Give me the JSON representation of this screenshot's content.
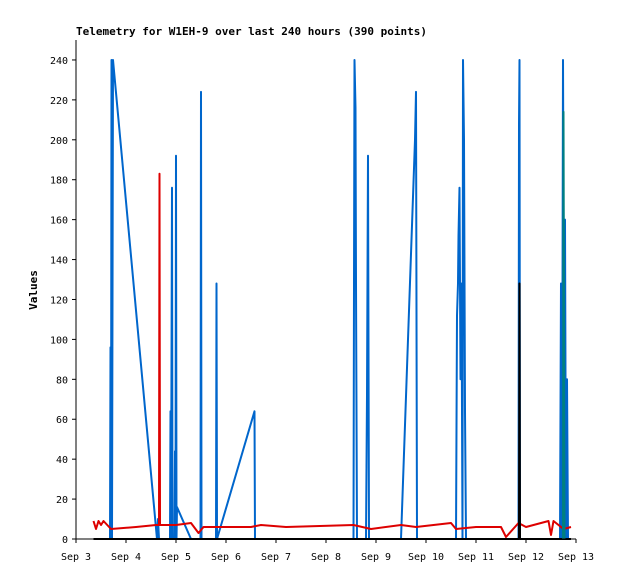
{
  "chart_data": {
    "type": "line",
    "title": "Telemetry for W1EH-9 over last 240 hours (390 points)",
    "xlabel": "",
    "ylabel": "Values",
    "x_unit": "day of September",
    "xlim": [
      3,
      13
    ],
    "ylim": [
      0,
      250
    ],
    "x_ticks": [
      3,
      4,
      5,
      6,
      7,
      8,
      9,
      10,
      11,
      12,
      13
    ],
    "x_tick_labels": [
      "Sep 3",
      "Sep 4",
      "Sep 5",
      "Sep 6",
      "Sep 7",
      "Sep 8",
      "Sep 9",
      "Sep 10",
      "Sep 11",
      "Sep 12",
      "Sep 13"
    ],
    "y_ticks": [
      0,
      20,
      40,
      60,
      80,
      100,
      120,
      140,
      160,
      180,
      200,
      220,
      240
    ],
    "grid": false,
    "legend": "none",
    "series": [
      {
        "color": "#0066cc",
        "points": [
          [
            3.55,
            0
          ],
          [
            3.68,
            0
          ],
          [
            3.69,
            96
          ],
          [
            3.7,
            0
          ],
          [
            3.71,
            240
          ],
          [
            3.72,
            0
          ],
          [
            3.74,
            240
          ],
          [
            4.62,
            0
          ],
          [
            4.64,
            10
          ],
          [
            4.66,
            0
          ],
          [
            4.88,
            0
          ],
          [
            4.89,
            64
          ],
          [
            4.9,
            0
          ],
          [
            4.92,
            176
          ],
          [
            4.93,
            0
          ],
          [
            4.97,
            0
          ],
          [
            4.98,
            44
          ],
          [
            4.99,
            0
          ],
          [
            5.0,
            192
          ],
          [
            5.01,
            0
          ],
          [
            5.02,
            16
          ],
          [
            5.3,
            0
          ],
          [
            5.49,
            0
          ],
          [
            5.5,
            224
          ],
          [
            5.51,
            0
          ],
          [
            5.73,
            0
          ],
          [
            5.8,
            0
          ],
          [
            5.81,
            128
          ],
          [
            5.82,
            0
          ],
          [
            6.57,
            64
          ],
          [
            6.58,
            0
          ],
          [
            8.55,
            0
          ],
          [
            8.56,
            128
          ],
          [
            8.57,
            240
          ],
          [
            8.59,
            216
          ],
          [
            8.6,
            128
          ],
          [
            8.62,
            0
          ],
          [
            8.8,
            0
          ],
          [
            8.82,
            72
          ],
          [
            8.84,
            192
          ],
          [
            8.86,
            0
          ],
          [
            9.5,
            0
          ],
          [
            9.78,
            200
          ],
          [
            9.8,
            224
          ],
          [
            9.82,
            0
          ],
          [
            10.6,
            0
          ],
          [
            10.62,
            112
          ],
          [
            10.64,
            128
          ],
          [
            10.65,
            152
          ],
          [
            10.67,
            176
          ],
          [
            10.69,
            80
          ],
          [
            10.71,
            128
          ],
          [
            10.73,
            0
          ],
          [
            10.74,
            240
          ],
          [
            10.76,
            200
          ],
          [
            10.78,
            64
          ],
          [
            10.8,
            0
          ],
          [
            11.85,
            0
          ],
          [
            11.86,
            208
          ],
          [
            11.87,
            240
          ],
          [
            11.88,
            0
          ],
          [
            12.68,
            0
          ],
          [
            12.7,
            128
          ],
          [
            12.72,
            0
          ],
          [
            12.74,
            240
          ],
          [
            12.76,
            96
          ],
          [
            12.78,
            160
          ],
          [
            12.8,
            0
          ],
          [
            12.82,
            80
          ],
          [
            12.84,
            0
          ]
        ]
      },
      {
        "color": "#dd0000",
        "points": [
          [
            3.35,
            9
          ],
          [
            3.4,
            5
          ],
          [
            3.45,
            9
          ],
          [
            3.5,
            7
          ],
          [
            3.55,
            9
          ],
          [
            3.7,
            5
          ],
          [
            4.2,
            6
          ],
          [
            4.6,
            7
          ],
          [
            4.66,
            7
          ],
          [
            4.67,
            183
          ],
          [
            4.68,
            7
          ],
          [
            5.0,
            7
          ],
          [
            5.3,
            8
          ],
          [
            5.45,
            3
          ],
          [
            5.55,
            6
          ],
          [
            6.5,
            6
          ],
          [
            6.7,
            7
          ],
          [
            7.2,
            6
          ],
          [
            8.55,
            7
          ],
          [
            8.9,
            5
          ],
          [
            9.5,
            7
          ],
          [
            9.8,
            6
          ],
          [
            10.5,
            8
          ],
          [
            10.6,
            5
          ],
          [
            11.0,
            6
          ],
          [
            11.5,
            6
          ],
          [
            11.6,
            1
          ],
          [
            11.85,
            8
          ],
          [
            12.0,
            6
          ],
          [
            12.45,
            9
          ],
          [
            12.5,
            2
          ],
          [
            12.55,
            9
          ],
          [
            12.75,
            5
          ],
          [
            12.9,
            6
          ]
        ]
      },
      {
        "color": "#000000",
        "points": [
          [
            3.35,
            0
          ],
          [
            11.86,
            0
          ],
          [
            11.87,
            128
          ],
          [
            11.88,
            0
          ],
          [
            12.9,
            0
          ]
        ]
      },
      {
        "color": "#008080",
        "points": [
          [
            12.74,
            0
          ],
          [
            12.75,
            214
          ],
          [
            12.76,
            108
          ],
          [
            12.77,
            0
          ]
        ]
      }
    ]
  }
}
